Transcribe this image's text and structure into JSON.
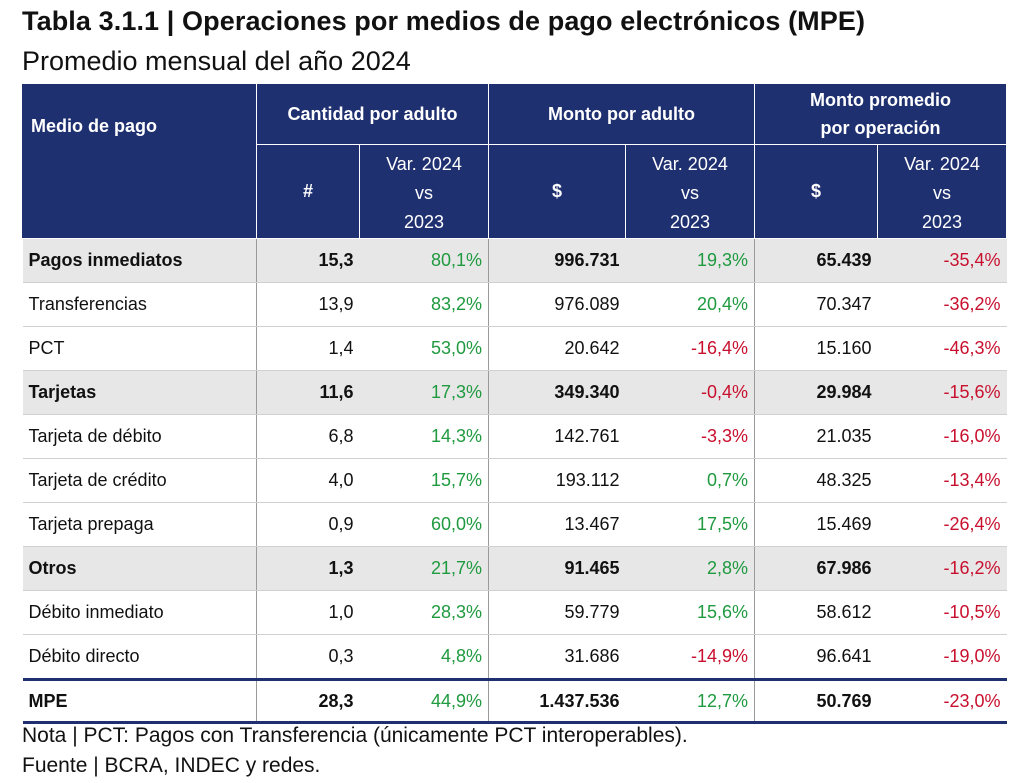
{
  "title": "Tabla 3.1.1 | Operaciones por medios de pago electrónicos (MPE)",
  "subtitle": "Promedio mensual del año 2024",
  "header": {
    "medio": "Medio de pago",
    "groups": [
      "Cantidad por adulto",
      "Monto por adulto",
      "Monto promedio por operación"
    ],
    "group3_line1": "Monto promedio",
    "group3_line2": "por operación",
    "sym_count": "#",
    "sym_money": "$",
    "var_l1": "Var. 2024",
    "var_l2": "vs",
    "var_l3": "2023"
  },
  "rows": [
    {
      "label": "Pagos inmediatos",
      "group": true,
      "cant": "15,3",
      "cant_var": "80,1%",
      "monto": "996.731",
      "monto_var": "19,3%",
      "prom": "65.439",
      "prom_var": "-35,4%"
    },
    {
      "label": "Transferencias",
      "group": false,
      "cant": "13,9",
      "cant_var": "83,2%",
      "monto": "976.089",
      "monto_var": "20,4%",
      "prom": "70.347",
      "prom_var": "-36,2%"
    },
    {
      "label": "PCT",
      "group": false,
      "cant": "1,4",
      "cant_var": "53,0%",
      "monto": "20.642",
      "monto_var": "-16,4%",
      "prom": "15.160",
      "prom_var": "-46,3%"
    },
    {
      "label": "Tarjetas",
      "group": true,
      "cant": "11,6",
      "cant_var": "17,3%",
      "monto": "349.340",
      "monto_var": "-0,4%",
      "prom": "29.984",
      "prom_var": "-15,6%"
    },
    {
      "label": "Tarjeta de débito",
      "group": false,
      "cant": "6,8",
      "cant_var": "14,3%",
      "monto": "142.761",
      "monto_var": "-3,3%",
      "prom": "21.035",
      "prom_var": "-16,0%"
    },
    {
      "label": "Tarjeta de crédito",
      "group": false,
      "cant": "4,0",
      "cant_var": "15,7%",
      "monto": "193.112",
      "monto_var": "0,7%",
      "prom": "48.325",
      "prom_var": "-13,4%"
    },
    {
      "label": "Tarjeta prepaga",
      "group": false,
      "cant": "0,9",
      "cant_var": "60,0%",
      "monto": "13.467",
      "monto_var": "17,5%",
      "prom": "15.469",
      "prom_var": "-26,4%"
    },
    {
      "label": "Otros",
      "group": true,
      "cant": "1,3",
      "cant_var": "21,7%",
      "monto": "91.465",
      "monto_var": "2,8%",
      "prom": "67.986",
      "prom_var": "-16,2%"
    },
    {
      "label": "Débito inmediato",
      "group": false,
      "cant": "1,0",
      "cant_var": "28,3%",
      "monto": "59.779",
      "monto_var": "15,6%",
      "prom": "58.612",
      "prom_var": "-10,5%"
    },
    {
      "label": "Débito directo",
      "group": false,
      "cant": "0,3",
      "cant_var": "4,8%",
      "monto": "31.686",
      "monto_var": "-14,9%",
      "prom": "96.641",
      "prom_var": "-19,0%"
    }
  ],
  "total": {
    "label": "MPE",
    "cant": "28,3",
    "cant_var": "44,9%",
    "monto": "1.437.536",
    "monto_var": "12,7%",
    "prom": "50.769",
    "prom_var": "-23,0%"
  },
  "colors": {
    "header_bg": "#1f3070",
    "positive": "#1f9a3f",
    "negative": "#c8102e",
    "group_bg": "#e7e7e7"
  },
  "note": "Nota | PCT: Pagos con Transferencia (únicamente PCT interoperables).",
  "source": "Fuente | BCRA, INDEC y redes."
}
